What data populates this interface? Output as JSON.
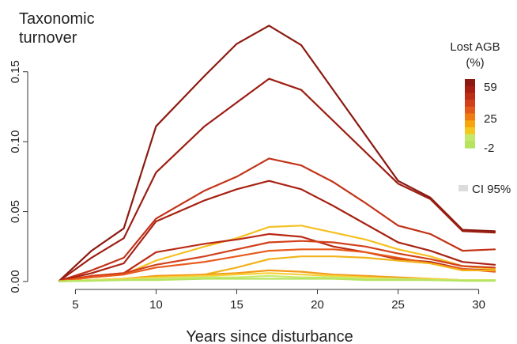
{
  "chart_data": {
    "type": "line",
    "title": "Taxonomic\nturnover",
    "title_lines": [
      "Taxonomic",
      "turnover"
    ],
    "xlabel": "Years since disturbance",
    "ylabel": "",
    "xlim": [
      4,
      31
    ],
    "ylim": [
      0,
      0.19
    ],
    "x_ticks": [
      5,
      10,
      15,
      20,
      25,
      30
    ],
    "x_tick_labels": [
      "5",
      "10",
      "15",
      "20",
      "25",
      "30"
    ],
    "y_ticks": [
      0,
      0.05,
      0.1,
      0.15
    ],
    "y_tick_labels": [
      "0.00",
      "0.05",
      "0.10",
      "0.15"
    ],
    "grid": false,
    "legend": {
      "title_lines": [
        "Lost AGB",
        "(%)"
      ],
      "placement": "top-right",
      "labels": [
        "59",
        "25",
        "-2"
      ],
      "colors": [
        "#8B1A10",
        "#A61F12",
        "#BE2E17",
        "#D2401B",
        "#E35A1A",
        "#F07D12",
        "#F7A50E",
        "#F5C821",
        "#C4E86B",
        "#B6E45F"
      ],
      "ci_label": "CI 95%",
      "ci_color": "#dcdcdc"
    },
    "series": [
      {
        "color": "#8B1A10",
        "x": [
          4,
          6,
          8,
          10,
          13,
          15,
          17,
          19,
          25,
          27,
          29,
          31
        ],
        "values": [
          0.0005,
          0.022,
          0.038,
          0.111,
          0.147,
          0.17,
          0.183,
          0.169,
          0.072,
          0.06,
          0.037,
          0.036
        ]
      },
      {
        "color": "#9C1E12",
        "x": [
          4,
          6,
          8,
          10,
          13,
          15,
          17,
          19,
          25,
          27,
          29,
          31
        ],
        "values": [
          0.0005,
          0.017,
          0.031,
          0.078,
          0.111,
          0.128,
          0.145,
          0.137,
          0.07,
          0.059,
          0.036,
          0.035
        ]
      },
      {
        "color": "#C23317",
        "x": [
          4,
          6,
          8,
          10,
          13,
          15,
          17,
          19,
          21,
          23,
          25,
          27,
          29,
          31
        ],
        "values": [
          0.0005,
          0.008,
          0.017,
          0.045,
          0.065,
          0.075,
          0.088,
          0.083,
          0.071,
          0.056,
          0.04,
          0.034,
          0.022,
          0.023
        ]
      },
      {
        "color": "#A82213",
        "x": [
          4,
          6,
          8,
          10,
          13,
          15,
          17,
          19,
          21,
          23,
          25,
          27,
          29,
          31
        ],
        "values": [
          0.0005,
          0.006,
          0.013,
          0.043,
          0.058,
          0.066,
          0.072,
          0.066,
          0.054,
          0.041,
          0.028,
          0.022,
          0.014,
          0.012
        ]
      },
      {
        "color": "#F5C020",
        "x": [
          4,
          6,
          8,
          10,
          13,
          15,
          17,
          19,
          21,
          23,
          25,
          27,
          29,
          31
        ],
        "values": [
          0.0003,
          0.003,
          0.005,
          0.015,
          0.025,
          0.031,
          0.039,
          0.04,
          0.035,
          0.03,
          0.023,
          0.018,
          0.011,
          0.009
        ]
      },
      {
        "color": "#B92A15",
        "x": [
          4,
          6,
          8,
          10,
          13,
          15,
          17,
          19,
          21,
          23,
          25,
          27,
          29,
          31
        ],
        "values": [
          0.0003,
          0.004,
          0.006,
          0.021,
          0.027,
          0.03,
          0.034,
          0.032,
          0.025,
          0.021,
          0.016,
          0.014,
          0.009,
          0.008
        ]
      },
      {
        "color": "#D2401B",
        "x": [
          4,
          6,
          8,
          10,
          13,
          15,
          17,
          19,
          21,
          23,
          25,
          27,
          29,
          31
        ],
        "values": [
          0.0003,
          0.004,
          0.006,
          0.012,
          0.018,
          0.023,
          0.028,
          0.029,
          0.028,
          0.025,
          0.02,
          0.016,
          0.011,
          0.01
        ]
      },
      {
        "color": "#E85A1C",
        "x": [
          4,
          6,
          8,
          10,
          13,
          15,
          17,
          19,
          21,
          23,
          25,
          27,
          29,
          31
        ],
        "values": [
          0.0003,
          0.003,
          0.005,
          0.01,
          0.014,
          0.018,
          0.022,
          0.023,
          0.023,
          0.021,
          0.017,
          0.013,
          0.009,
          0.007
        ]
      },
      {
        "color": "#F1B21A",
        "x": [
          4,
          6,
          8,
          10,
          13,
          15,
          17,
          19,
          21,
          23,
          25,
          27,
          29,
          31
        ],
        "values": [
          0.0002,
          0.001,
          0.002,
          0.003,
          0.005,
          0.01,
          0.016,
          0.018,
          0.018,
          0.017,
          0.015,
          0.013,
          0.008,
          0.008
        ]
      },
      {
        "color": "#F39A18",
        "x": [
          4,
          6,
          8,
          10,
          13,
          15,
          17,
          19,
          21,
          23,
          25,
          27,
          29,
          31
        ],
        "values": [
          0.0002,
          0.001,
          0.002,
          0.004,
          0.005,
          0.006,
          0.008,
          0.007,
          0.005,
          0.004,
          0.003,
          0.002,
          0.001,
          0.001
        ]
      },
      {
        "color": "#F6D23A",
        "x": [
          4,
          6,
          8,
          10,
          13,
          15,
          17,
          19,
          21,
          23,
          25,
          27,
          29,
          31
        ],
        "values": [
          0.0001,
          0.001,
          0.002,
          0.003,
          0.004,
          0.005,
          0.006,
          0.005,
          0.004,
          0.003,
          0.002,
          0.002,
          0.001,
          0.001
        ]
      },
      {
        "color": "#C9EA73",
        "x": [
          4,
          6,
          8,
          10,
          13,
          15,
          17,
          19,
          21,
          23,
          25,
          27,
          29,
          31
        ],
        "values": [
          0.0001,
          0.001,
          0.001,
          0.002,
          0.003,
          0.003,
          0.004,
          0.003,
          0.003,
          0.002,
          0.002,
          0.001,
          0.001,
          0.001
        ]
      },
      {
        "color": "#B6E45F",
        "x": [
          4,
          6,
          8,
          10,
          13,
          15,
          17,
          19,
          21,
          23,
          25,
          27,
          29,
          31
        ],
        "values": [
          0.0001,
          0.0005,
          0.001,
          0.001,
          0.002,
          0.002,
          0.002,
          0.002,
          0.002,
          0.001,
          0.001,
          0.001,
          0.0005,
          0.0005
        ]
      }
    ]
  }
}
